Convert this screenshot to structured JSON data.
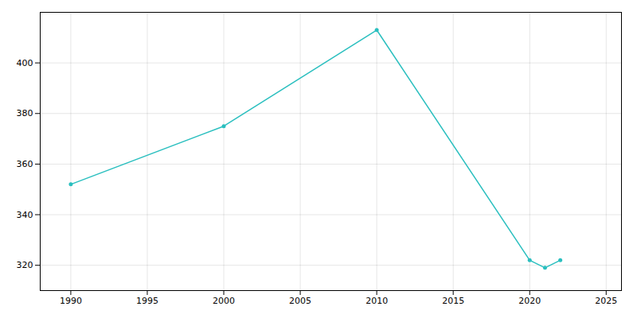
{
  "chart_data": {
    "type": "line",
    "x": [
      1990,
      2000,
      2010,
      2020,
      2021,
      2022
    ],
    "values": [
      352,
      375,
      413,
      322,
      319,
      322
    ],
    "color": "#2abfbf",
    "marker": "circle",
    "xlim": [
      1988,
      2026
    ],
    "ylim": [
      310,
      420
    ],
    "xticks": [
      1990,
      1995,
      2000,
      2005,
      2010,
      2015,
      2020,
      2025
    ],
    "yticks": [
      320,
      340,
      360,
      380,
      400
    ],
    "grid": true
  }
}
